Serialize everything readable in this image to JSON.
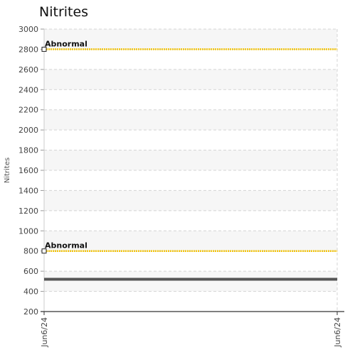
{
  "chart_data": {
    "type": "line",
    "title": "Nitrites",
    "ylabel": "Nitrites",
    "xlabel": "",
    "ylim": [
      200,
      3000
    ],
    "y_ticks": [
      200,
      400,
      600,
      800,
      1000,
      1200,
      1400,
      1600,
      1800,
      2000,
      2200,
      2400,
      2600,
      2800,
      3000
    ],
    "x_tick_labels": [
      "Jun6/24",
      "Jun6/24"
    ],
    "grid": true,
    "series": [
      {
        "values": [
          520,
          520
        ],
        "color": "#555555"
      }
    ],
    "reference_lines": [
      {
        "label": "Abnormal",
        "value": 2800,
        "color": "#f2c40f"
      },
      {
        "label": "Abnormal",
        "value": 800,
        "color": "#f2c40f"
      }
    ]
  }
}
